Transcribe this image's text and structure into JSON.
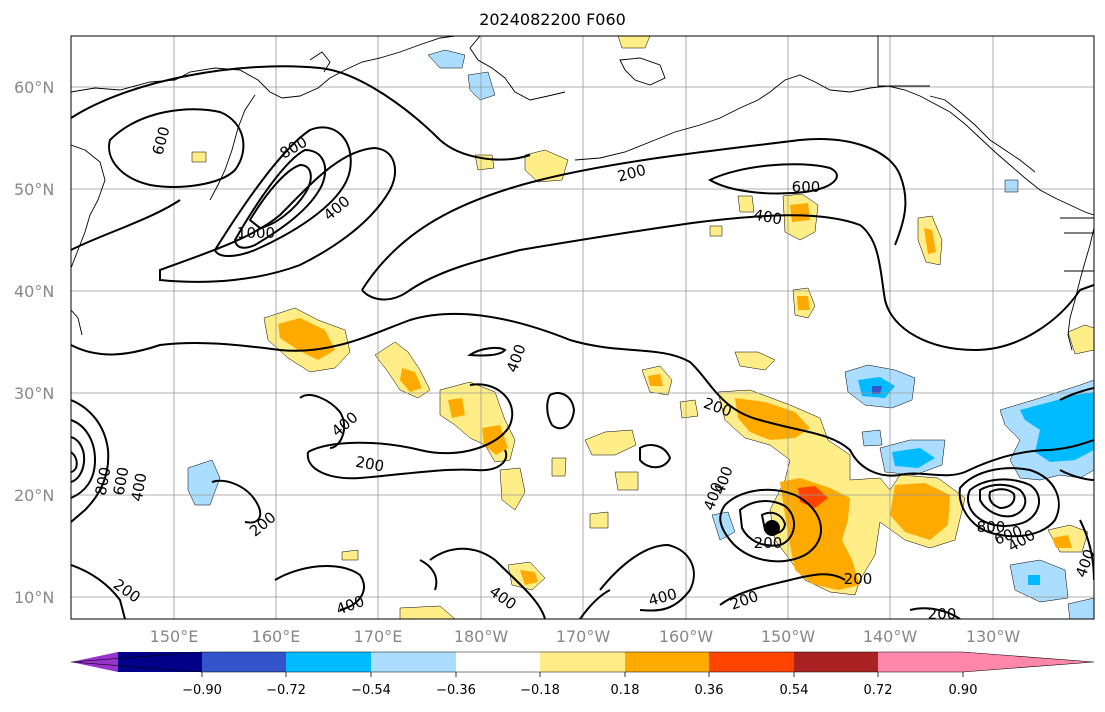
{
  "title": "2024082200 F060",
  "lat_labels": [
    "60°N",
    "50°N",
    "40°N",
    "30°N",
    "20°N",
    "10°N"
  ],
  "lon_labels": [
    "150°E",
    "160°E",
    "170°E",
    "180°W",
    "170°W",
    "160°W",
    "150°W",
    "140°W",
    "130°W"
  ],
  "colorbar": {
    "tick_labels": [
      "−0.90",
      "−0.72",
      "−0.54",
      "−0.36",
      "−0.18",
      "0.18",
      "0.36",
      "0.54",
      "0.72",
      "0.90"
    ],
    "colors": [
      "#9933cc",
      "#000088",
      "#3355cc",
      "#00bbff",
      "#aaddff",
      "#ffffff",
      "#ffee88",
      "#ffaa00",
      "#ff4400",
      "#aa2222",
      "#ff88aa"
    ]
  },
  "contour_labels": [
    "600",
    "800",
    "1000",
    "400",
    "200",
    "200",
    "600",
    "400",
    "400",
    "200",
    "400",
    "800",
    "600",
    "400",
    "200",
    "200",
    "400",
    "400",
    "400",
    "200",
    "200",
    "400",
    "200",
    "400",
    "200",
    "800",
    "600",
    "400",
    "400",
    "200",
    "200",
    "400",
    "600",
    "400"
  ],
  "colors": {
    "positive_light": "#ffee88",
    "positive_mid": "#ffaa00",
    "positive_high": "#ff4400",
    "negative_light": "#aaddff",
    "negative_mid": "#00bbff",
    "negative_strong": "#3355cc"
  }
}
